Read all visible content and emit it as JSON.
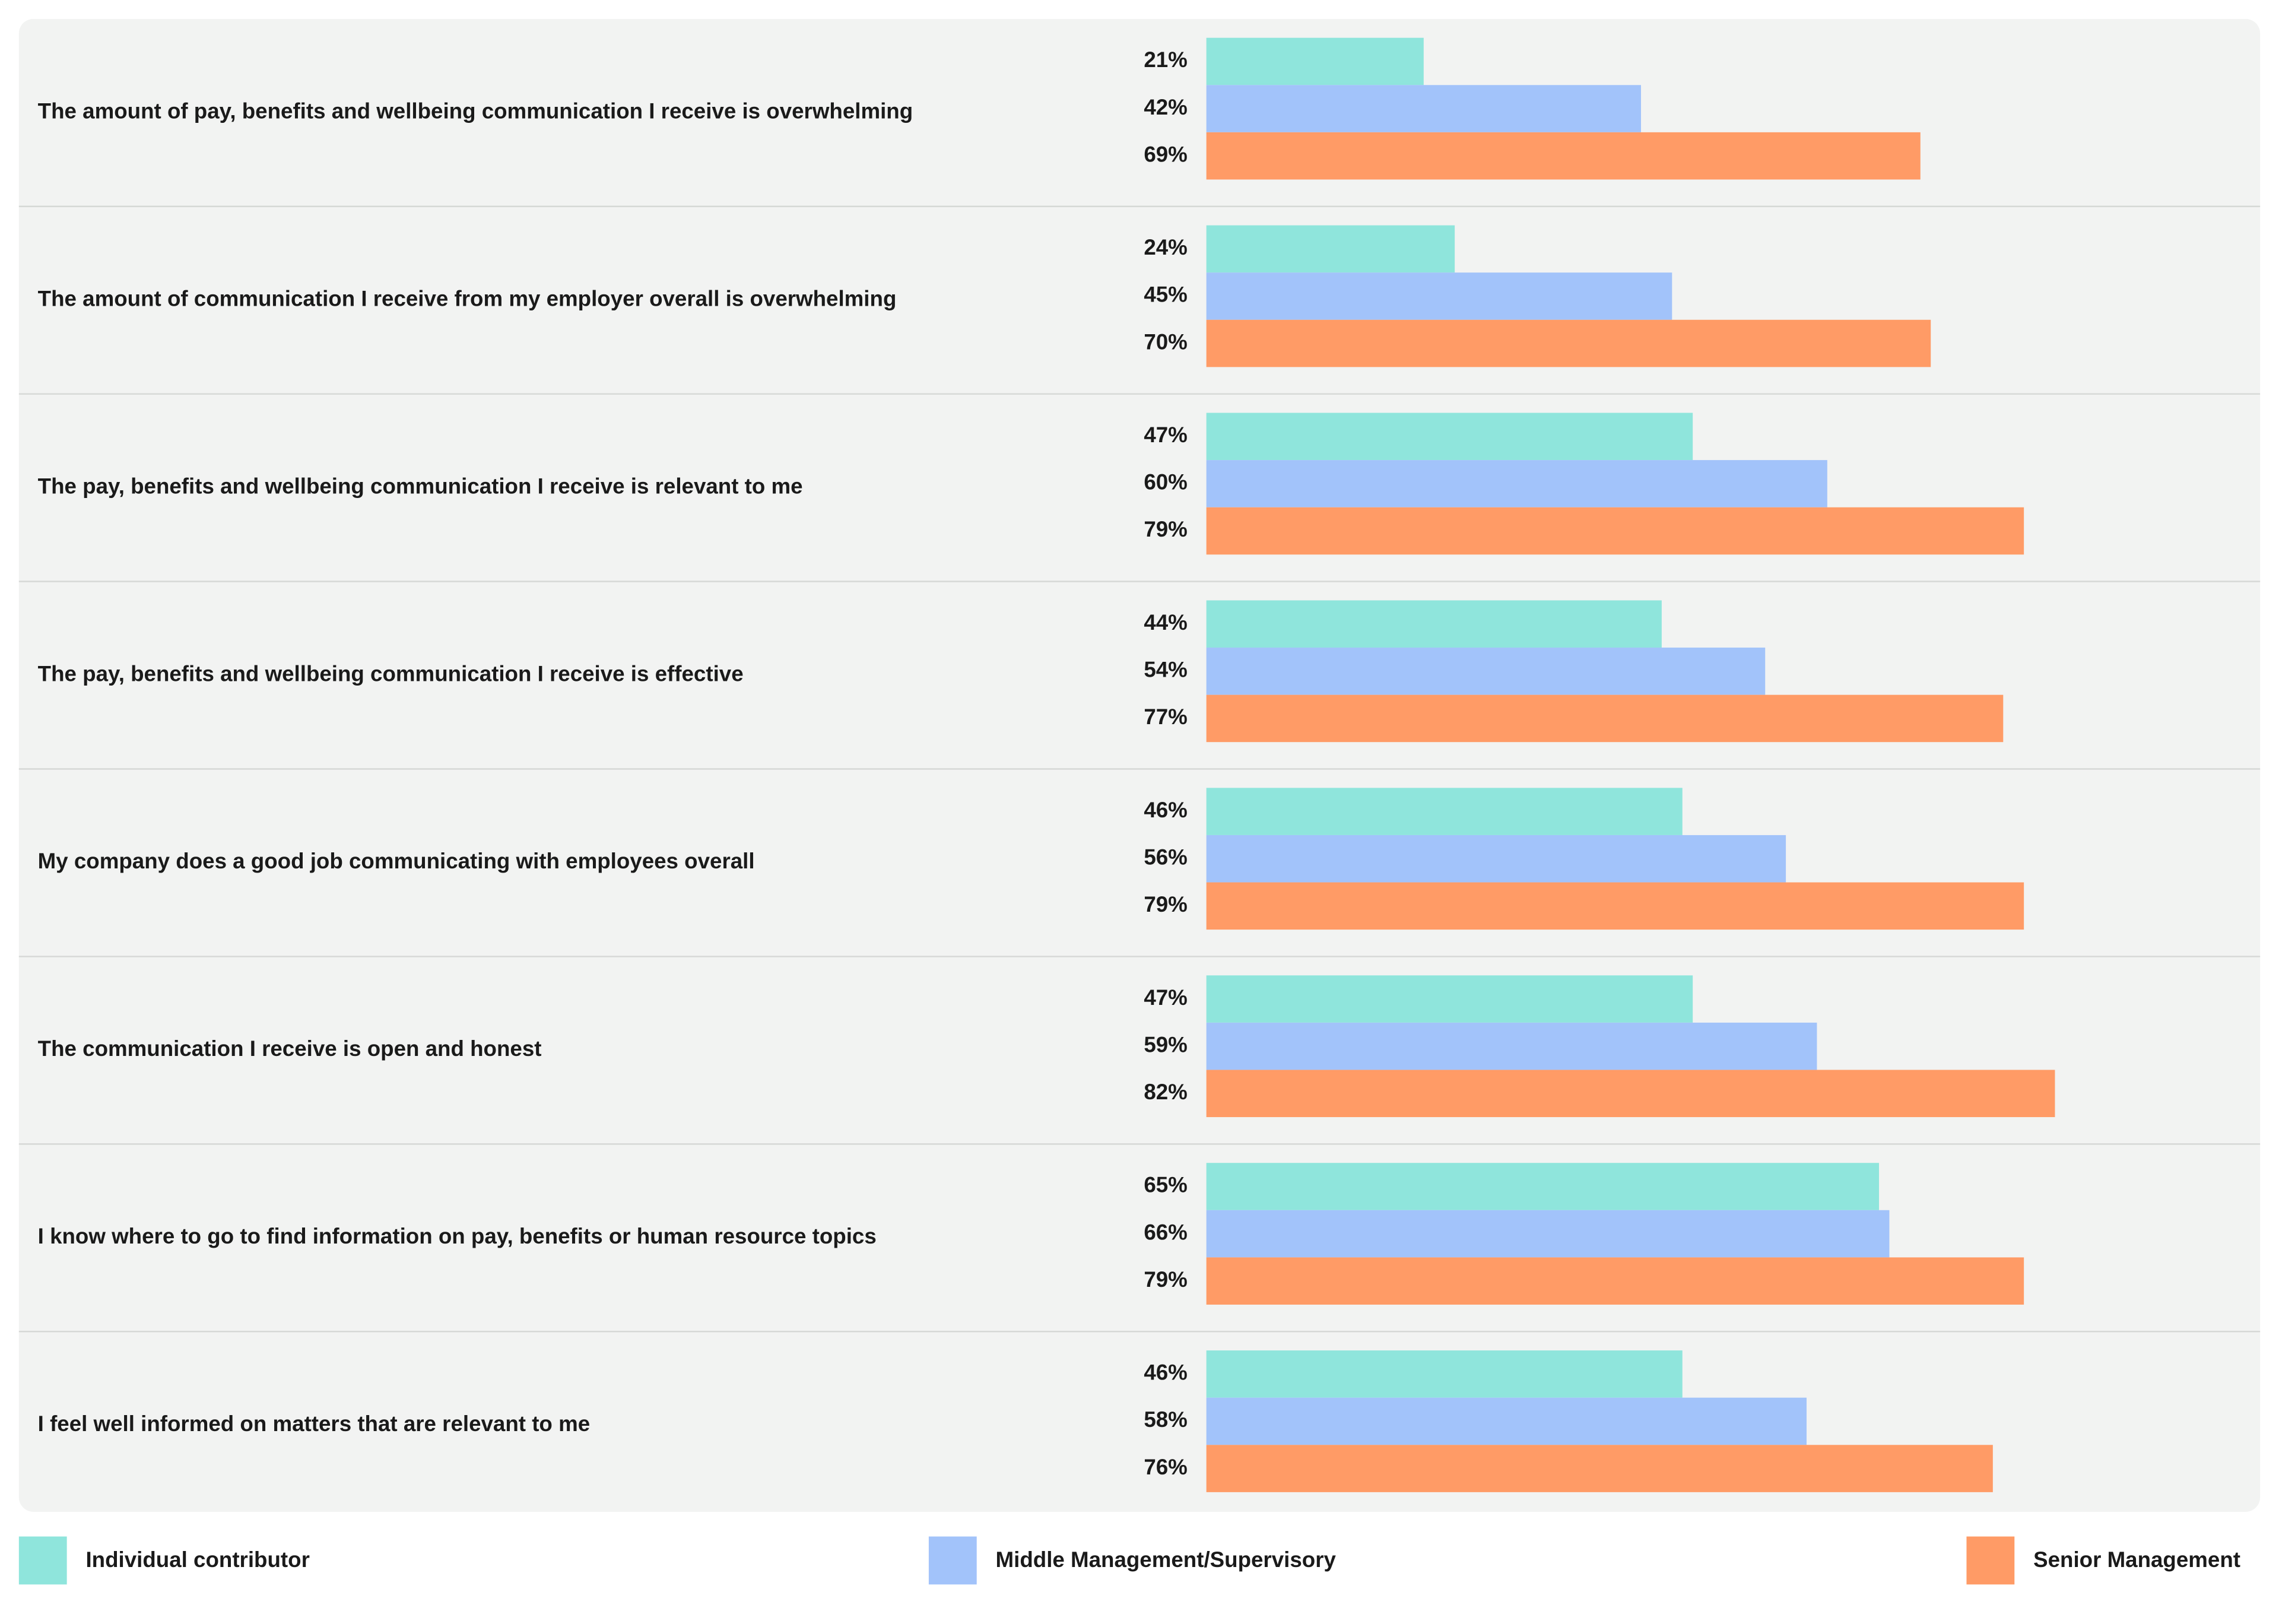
{
  "chart_data": {
    "type": "bar",
    "orientation": "horizontal",
    "categories": [
      "The amount of pay, benefits and wellbeing communication I receive is overwhelming",
      "The amount of communication I receive from my employer overall is overwhelming",
      "The pay, benefits and wellbeing communication I receive is relevant to me",
      "The pay, benefits and wellbeing communication I receive is effective",
      "My company does a good job communicating with employees overall",
      "The communication I receive is open and honest",
      "I know where to go to find information on pay, benefits or human resource topics",
      "I feel well informed on matters that are relevant to me"
    ],
    "series": [
      {
        "name": "Individual contributor",
        "color": "#8fe5dc",
        "values": [
          21,
          24,
          47,
          44,
          46,
          47,
          65,
          46
        ],
        "value_labels": [
          "21%",
          "24%",
          "47%",
          "44%",
          "46%",
          "47%",
          "65%",
          "46%"
        ]
      },
      {
        "name": "Middle Management/Supervisory",
        "color": "#a2c3fa",
        "values": [
          42,
          45,
          60,
          54,
          56,
          59,
          66,
          58
        ],
        "value_labels": [
          "42%",
          "45%",
          "60%",
          "54%",
          "56%",
          "59%",
          "66%",
          "58%"
        ]
      },
      {
        "name": "Senior Management",
        "color": "#ff9b66",
        "values": [
          69,
          70,
          79,
          77,
          79,
          82,
          79,
          76
        ],
        "value_labels": [
          "69%",
          "70%",
          "79%",
          "77%",
          "79%",
          "82%",
          "79%",
          "76%"
        ]
      }
    ],
    "xlim": [
      0,
      100
    ]
  }
}
